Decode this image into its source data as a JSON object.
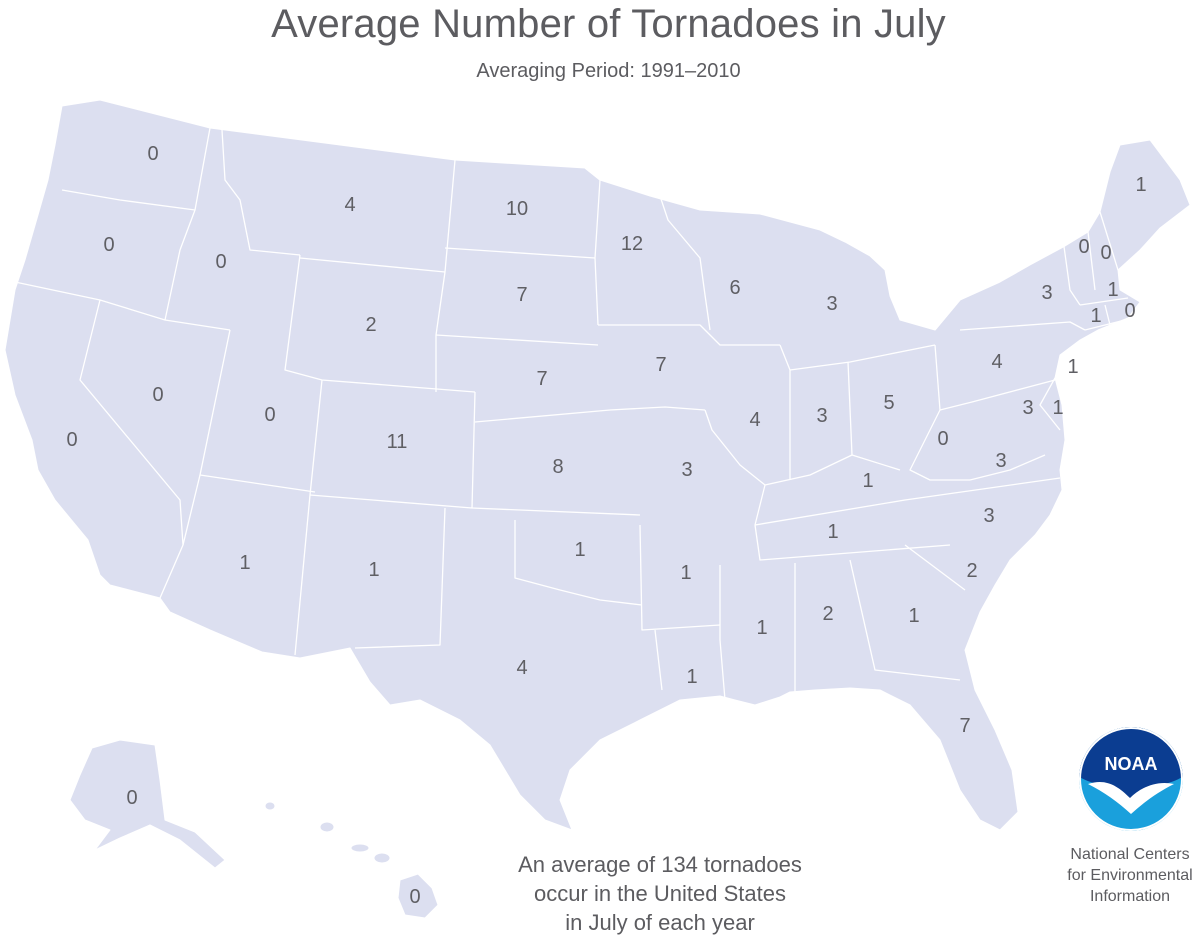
{
  "title": "Average Number of Tornadoes in July",
  "subtitle": "Averaging Period:  1991–2010",
  "summary": {
    "line1": "An average of 134 tornadoes",
    "line2": "occur in the United States",
    "line3": "in July of each year"
  },
  "organization": {
    "logo_text": "NOAA",
    "line1": "National Centers",
    "line2": "for Environmental",
    "line3": "Information"
  },
  "colors": {
    "state_fill": "#dcdff0",
    "border": "#ffffff",
    "text": "#5f5f64",
    "logo_blue": "#1aa0dc",
    "logo_navy": "#0b3d91"
  },
  "states": {
    "WA": "0",
    "OR": "0",
    "CA": "0",
    "ID": "0",
    "NV": "0",
    "MT": "4",
    "WY": "2",
    "UT": "0",
    "AZ": "1",
    "CO": "11",
    "NM": "1",
    "ND": "10",
    "SD": "7",
    "NE": "7",
    "KS": "8",
    "OK": "1",
    "TX": "4",
    "MN": "12",
    "IA": "7",
    "MO": "3",
    "AR": "1",
    "LA": "1",
    "WI": "6",
    "IL": "4",
    "MI": "3",
    "IN": "3",
    "OH": "5",
    "KY": "1",
    "TN": "1",
    "MS": "1",
    "AL": "2",
    "GA": "1",
    "FL": "7",
    "SC": "2",
    "NC": "3",
    "VA": "3",
    "WV": "0",
    "PA": "4",
    "NY": "3",
    "VT": "0",
    "NH": "0",
    "ME": "1",
    "MA": "1",
    "CT": "1",
    "RI": "0",
    "NJ": "1",
    "MD": "3",
    "DE": "1",
    "AK": "0",
    "HI": "0"
  }
}
